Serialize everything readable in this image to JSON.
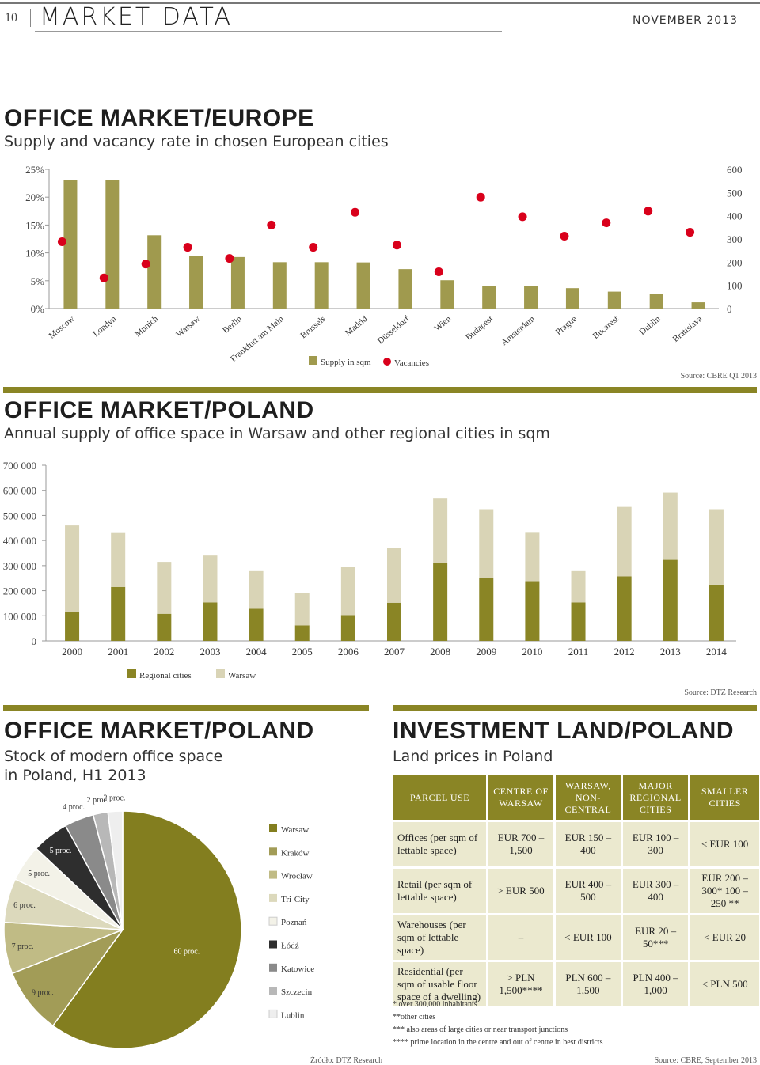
{
  "header": {
    "page_number": "10",
    "section": "MARKET DATA",
    "date": "NOVEMBER 2013"
  },
  "colors": {
    "olive": "#8a8525",
    "light": "#d9d4b6",
    "red": "#d9001b",
    "europe_bar": "#a09a4e"
  },
  "europe": {
    "title": "OFFICE MARKET/EUROPE",
    "subtitle": "Supply and vacancy rate in chosen European cities",
    "legend_supply": "Supply in sqm",
    "legend_vacancy": "Vacancies",
    "source": "Source: CBRE Q1 2013"
  },
  "poland_supply": {
    "title": "OFFICE MARKET/POLAND",
    "subtitle": "Annual supply of office space in Warsaw and other regional cities in sqm",
    "legend_regional": "Regional cities",
    "legend_warsaw": "Warsaw",
    "source": "Source: DTZ Research"
  },
  "poland_stock": {
    "title": "OFFICE MARKET/POLAND",
    "subtitle_line1": "Stock of modern office space",
    "subtitle_line2": "in Poland, H1 2013",
    "source": "Źródło: DTZ Research"
  },
  "land": {
    "title": "INVESTMENT LAND/POLAND",
    "subtitle": "Land prices in Poland",
    "headers": [
      "PARCEL USE",
      "CENTRE OF WARSAW",
      "WARSAW, NON-CENTRAL",
      "MAJOR REGIONAL CITIES",
      "SMALLER CITIES"
    ],
    "rows": [
      [
        "Offices (per sqm of lettable space)",
        "EUR 700 – 1,500",
        "EUR 150 – 400",
        "EUR 100 – 300",
        "< EUR 100"
      ],
      [
        "Retail (per sqm of lettable space)",
        "> EUR 500",
        "EUR 400 – 500",
        "EUR 300 – 400",
        "EUR 200 – 300* 100 – 250 **"
      ],
      [
        "Warehouses (per sqm of lettable space)",
        "–",
        "< EUR 100",
        "EUR 20 – 50***",
        "< EUR 20"
      ],
      [
        "Residential (per sqm of usable floor space of a dwelling)",
        "> PLN 1,500****",
        "PLN 600 – 1,500",
        "PLN 400 – 1,000",
        "< PLN 500"
      ]
    ],
    "footnotes": [
      "* over 300,000 inhabitants",
      "**other cities",
      "*** also areas of large cities or near transport junctions",
      "**** prime location in the centre and out of centre in best districts"
    ],
    "source": "Source: CBRE, September 2013"
  },
  "chart_data": [
    {
      "type": "bar",
      "title": "Supply and vacancy rate in chosen European cities",
      "categories": [
        "Moscow",
        "Londyn",
        "Munich",
        "Warsaw",
        "Berlin",
        "Frankfurt am Main",
        "Brussels",
        "Madrid",
        "Düsseldorf",
        "Wien",
        "Budapest",
        "Amsterdam",
        "Prague",
        "Bucarest",
        "Dublin",
        "Bratislava"
      ],
      "series": [
        {
          "name": "Supply in sqm",
          "axis": "right",
          "values": [
            553,
            553,
            316,
            225,
            222,
            200,
            200,
            199,
            170,
            122,
            98,
            96,
            88,
            73,
            62,
            27
          ]
        },
        {
          "name": "Vacancies",
          "axis": "left",
          "marker": "dot",
          "values": [
            12,
            5.5,
            8,
            11,
            9,
            15,
            11,
            17.3,
            11.4,
            6.6,
            20,
            16.5,
            13,
            15.4,
            17.5,
            13.7
          ]
        }
      ],
      "yticks_left": [
        "25%",
        "20%",
        "15%",
        "10%",
        "5%",
        "0%"
      ],
      "ylim_left": [
        0,
        25
      ],
      "yticks_right": [
        "600",
        "500",
        "400",
        "300",
        "200",
        "100",
        "0"
      ],
      "ylim_right": [
        0,
        600
      ],
      "grid": false,
      "legend": "bottom-center"
    },
    {
      "type": "bar",
      "stacked": true,
      "title": "Annual supply of office space in Warsaw and other regional cities in sqm",
      "categories": [
        "2000",
        "2001",
        "2002",
        "2003",
        "2004",
        "2005",
        "2006",
        "2007",
        "2008",
        "2009",
        "2010",
        "2011",
        "2012",
        "2013",
        "2014"
      ],
      "series": [
        {
          "name": "Regional cities",
          "values": [
            115000,
            215000,
            108000,
            153000,
            128000,
            62000,
            103000,
            152000,
            310000,
            250000,
            238000,
            153000,
            257000,
            323000,
            224000
          ]
        },
        {
          "name": "Warsaw",
          "values": [
            345000,
            218000,
            207000,
            187000,
            150000,
            129000,
            192000,
            220000,
            257000,
            275000,
            196000,
            125000,
            277000,
            268000,
            301000
          ]
        }
      ],
      "yticks": [
        "700 000",
        "600 000",
        "500 000",
        "400 000",
        "300 000",
        "200 000",
        "100 000",
        "0"
      ],
      "ylim": [
        0,
        700000
      ],
      "grid": false,
      "legend": "bottom-center"
    },
    {
      "type": "pie",
      "title": "Stock of modern office space in Poland, H1 2013",
      "labels": [
        "Warsaw",
        "Kraków",
        "Wrocław",
        "Tri-City",
        "Poznań",
        "Łódź",
        "Katowice",
        "Szczecin",
        "Lublin"
      ],
      "values": [
        60,
        9,
        7,
        6,
        5,
        5,
        4,
        2,
        2
      ],
      "value_labels": [
        "60 proc.",
        "9 proc.",
        "7 proc.",
        "6 proc.",
        "5 proc.",
        "5 proc.",
        "4 proc.",
        "2 proc.",
        "2 proc."
      ],
      "colors": [
        "#837e1f",
        "#a29c57",
        "#c0bb85",
        "#dcd9bc",
        "#f3f2e8",
        "#2e2e2e",
        "#8a8a8a",
        "#b8b8b8",
        "#eeeeee"
      ],
      "legend": "right"
    }
  ]
}
